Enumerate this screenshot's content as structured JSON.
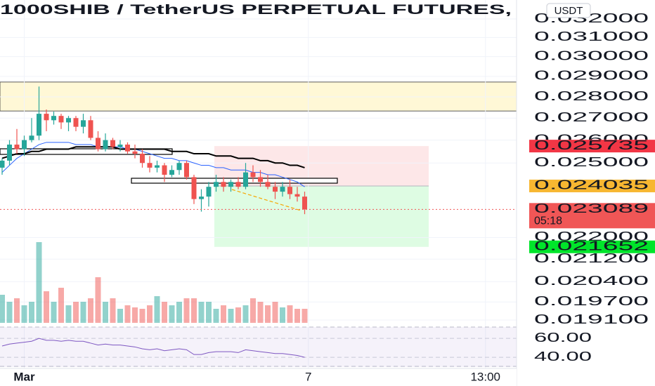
{
  "chart_data": {
    "type": "candlestick",
    "title": "1000SHIB / TetherUS PERPETUAL FUTURES,",
    "currency": "USDT",
    "log_scale": true,
    "grid": true,
    "up_color": "#26a69a",
    "down_color": "#ef5350",
    "open": [
      0.0248,
      0.0251,
      0.0258,
      0.0256,
      0.026,
      0.0262,
      0.0272,
      0.0269,
      0.0271,
      0.0268,
      0.027,
      0.0266,
      0.0269,
      0.0261,
      0.0256,
      0.026,
      0.0257,
      0.0258,
      0.0255,
      0.0254,
      0.025,
      0.0248,
      0.0249,
      0.0245,
      0.0247,
      0.025,
      0.0244,
      0.0235,
      0.0236,
      0.024,
      0.0242,
      0.024,
      0.0242,
      0.024,
      0.0246,
      0.0244,
      0.0242,
      0.024,
      0.0238,
      0.024,
      0.0237,
      0.0236
    ],
    "high": [
      0.0252,
      0.026,
      0.0265,
      0.0262,
      0.027,
      0.0285,
      0.0274,
      0.0273,
      0.0272,
      0.0271,
      0.0271,
      0.0272,
      0.0271,
      0.0264,
      0.0263,
      0.0261,
      0.026,
      0.0259,
      0.0258,
      0.0256,
      0.0253,
      0.0251,
      0.025,
      0.0249,
      0.0251,
      0.0251,
      0.0245,
      0.0239,
      0.0242,
      0.0245,
      0.0244,
      0.0243,
      0.0244,
      0.025,
      0.0249,
      0.0247,
      0.0245,
      0.0242,
      0.0242,
      0.0243,
      0.024,
      0.0238
    ],
    "low": [
      0.0245,
      0.0249,
      0.0254,
      0.0253,
      0.0259,
      0.026,
      0.0264,
      0.0267,
      0.0265,
      0.0264,
      0.0264,
      0.0263,
      0.026,
      0.0255,
      0.0255,
      0.0256,
      0.0255,
      0.0254,
      0.0252,
      0.0248,
      0.0246,
      0.0246,
      0.0242,
      0.0244,
      0.0245,
      0.0243,
      0.0233,
      0.023,
      0.0232,
      0.0238,
      0.0238,
      0.0238,
      0.0239,
      0.0239,
      0.0242,
      0.024,
      0.0239,
      0.0235,
      0.0236,
      0.0235,
      0.0234,
      0.0229
    ],
    "close": [
      0.0251,
      0.0258,
      0.0256,
      0.026,
      0.0262,
      0.0272,
      0.0269,
      0.0271,
      0.0268,
      0.027,
      0.0266,
      0.0269,
      0.0261,
      0.0256,
      0.026,
      0.0257,
      0.0258,
      0.0255,
      0.0254,
      0.025,
      0.0248,
      0.0249,
      0.0245,
      0.0247,
      0.025,
      0.0244,
      0.0235,
      0.0236,
      0.024,
      0.0242,
      0.024,
      0.0242,
      0.024,
      0.0246,
      0.0244,
      0.0242,
      0.024,
      0.0238,
      0.024,
      0.0237,
      0.0236,
      0.023089
    ],
    "volume": [
      40,
      30,
      35,
      25,
      30,
      115,
      45,
      30,
      50,
      25,
      30,
      30,
      35,
      65,
      30,
      35,
      20,
      25,
      22,
      20,
      25,
      38,
      30,
      25,
      30,
      35,
      35,
      30,
      30,
      20,
      25,
      20,
      22,
      25,
      35,
      30,
      25,
      30,
      22,
      25,
      20,
      20
    ],
    "volume_lim": [
      0,
      140
    ],
    "ma_series": [
      {
        "color": "#2962ff",
        "values": [
          0.0246,
          0.0249,
          0.0252,
          0.0254,
          0.0256,
          0.0258,
          0.0259,
          0.0259,
          0.0259,
          0.0259,
          0.0258,
          0.0258,
          0.0258,
          0.0257,
          0.0257,
          0.0257,
          0.0257,
          0.0256,
          0.0256,
          0.0255,
          0.0254,
          0.0253,
          0.0252,
          0.0252,
          0.0251,
          0.0251,
          0.025,
          0.0249,
          0.0249,
          0.0248,
          0.0248,
          0.0247,
          0.0247,
          0.0247,
          0.0246,
          0.0246,
          0.0245,
          0.0245,
          0.0244,
          0.0243,
          0.0242,
          0.024
        ]
      },
      {
        "color": "#000000",
        "values": [
          0.0252,
          0.0253,
          0.0254,
          0.0254,
          0.0255,
          0.0255,
          0.0256,
          0.0256,
          0.0256,
          0.0256,
          0.0257,
          0.0257,
          0.0257,
          0.0257,
          0.0257,
          0.0257,
          0.0256,
          0.0256,
          0.0256,
          0.0256,
          0.0256,
          0.0256,
          0.0256,
          0.0255,
          0.0255,
          0.0255,
          0.0254,
          0.0254,
          0.0254,
          0.0253,
          0.0253,
          0.0253,
          0.0252,
          0.0252,
          0.0252,
          0.0251,
          0.0251,
          0.025,
          0.025,
          0.0249,
          0.0249,
          0.0248
        ]
      }
    ],
    "zone": [
      0.02872,
      0.02733
    ],
    "ylim": [
      0.0191,
      0.032
    ],
    "yticks": [
      {
        "value": 0.032,
        "label": "0.032000"
      },
      {
        "value": 0.031,
        "label": "0.031000"
      },
      {
        "value": 0.03,
        "label": "0.030000"
      },
      {
        "value": 0.029,
        "label": "0.029000"
      },
      {
        "value": 0.028,
        "label": "0.028000"
      },
      {
        "value": 0.027,
        "label": "0.027000"
      },
      {
        "value": 0.026,
        "label": "0.026000"
      },
      {
        "value": 0.025,
        "label": "0.025000"
      },
      {
        "value": 0.022,
        "label": "0.022000"
      },
      {
        "value": 0.0212,
        "label": "0.021200"
      },
      {
        "value": 0.0204,
        "label": "0.020400"
      },
      {
        "value": 0.0197,
        "label": "0.019700"
      },
      {
        "value": 0.0191,
        "label": "0.019100"
      }
    ],
    "price_tags": [
      {
        "value": 0.025735,
        "label": "0.025735",
        "color": "#f23645"
      },
      {
        "value": 0.024035,
        "label": "0.024035",
        "color": "#f7b731"
      },
      {
        "value": 0.023089,
        "label": "0.023089",
        "countdown": "05:18",
        "color": "#f05656"
      },
      {
        "value": 0.021652,
        "label": "0.021652",
        "color": "#00e52a"
      }
    ],
    "xticks": [
      {
        "value": 3,
        "label": "Mar"
      },
      {
        "value": 41.5,
        "label": "7"
      },
      {
        "value": 65.5,
        "label": "13:00"
      }
    ],
    "rsi": {
      "color": "#7e57c2",
      "values": [
        52,
        54,
        55,
        56,
        57,
        60,
        58,
        58,
        57,
        58,
        57,
        57,
        55,
        53,
        54,
        53,
        53,
        52,
        51,
        49,
        48,
        49,
        47,
        48,
        49,
        48,
        43,
        43,
        45,
        46,
        46,
        46,
        45,
        48,
        47,
        46,
        45,
        44,
        44,
        43,
        42,
        40
      ],
      "ylim": [
        29,
        72
      ],
      "yticks": [
        {
          "value": 60,
          "label": "60.00"
        },
        {
          "value": 40,
          "label": "40.00"
        }
      ]
    }
  }
}
